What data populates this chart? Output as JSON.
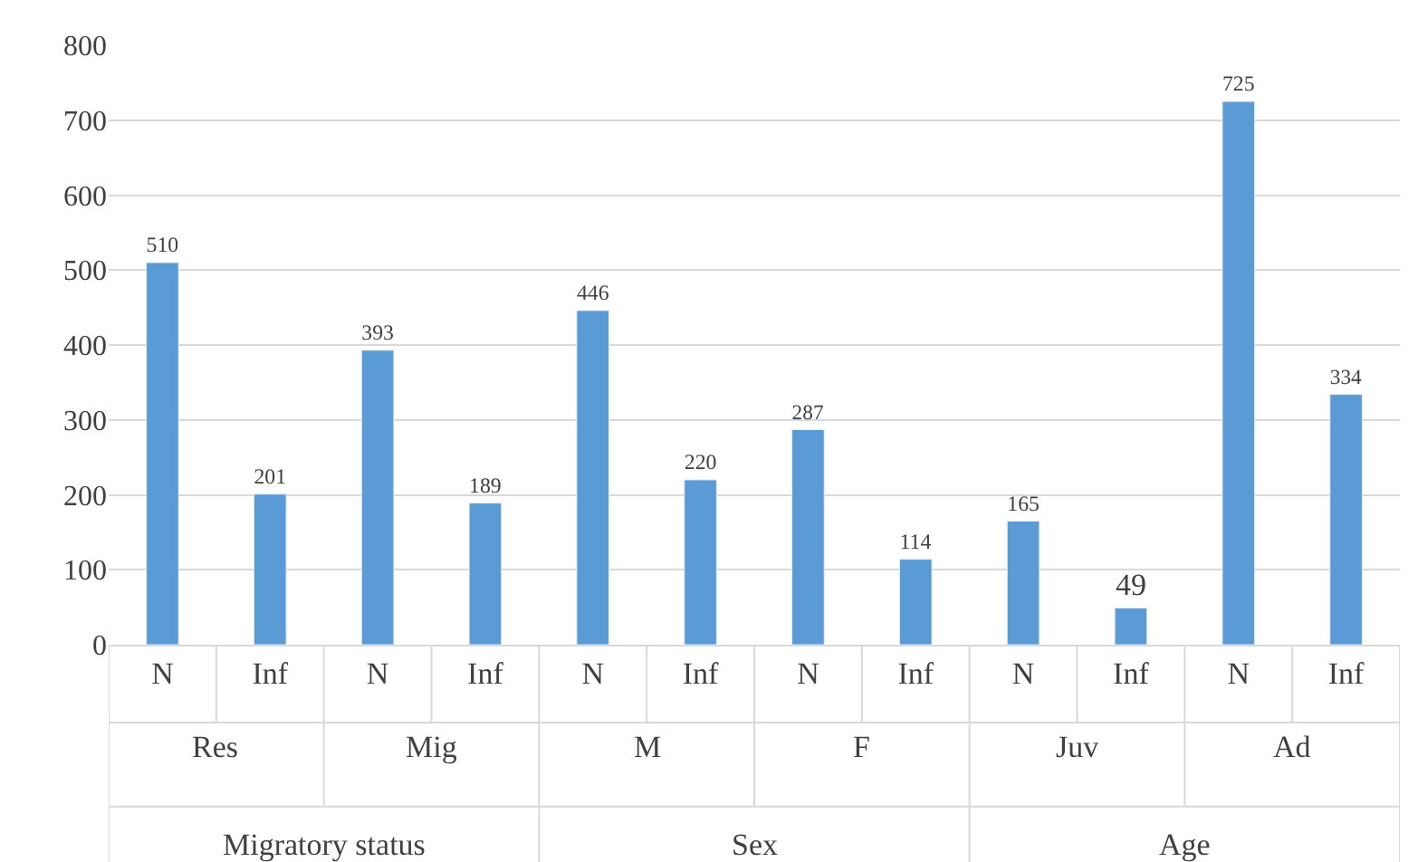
{
  "chart_data": {
    "type": "bar",
    "categories": [
      "N",
      "Inf",
      "N",
      "Inf",
      "N",
      "Inf",
      "N",
      "Inf",
      "N",
      "Inf",
      "N",
      "Inf"
    ],
    "values": [
      510,
      201,
      393,
      189,
      446,
      220,
      287,
      114,
      165,
      49,
      725,
      334
    ],
    "color": "#5b9bd5",
    "ylim": [
      0,
      800
    ],
    "yticks": [
      0,
      100,
      200,
      300,
      400,
      500,
      600,
      700,
      800
    ],
    "grid": "y",
    "legend": false,
    "data_labels": true,
    "annotations": [
      "Res",
      "Mig",
      "M",
      "F",
      "Juv",
      "Ad",
      "Migratory status",
      "Sex",
      "Age"
    ]
  }
}
